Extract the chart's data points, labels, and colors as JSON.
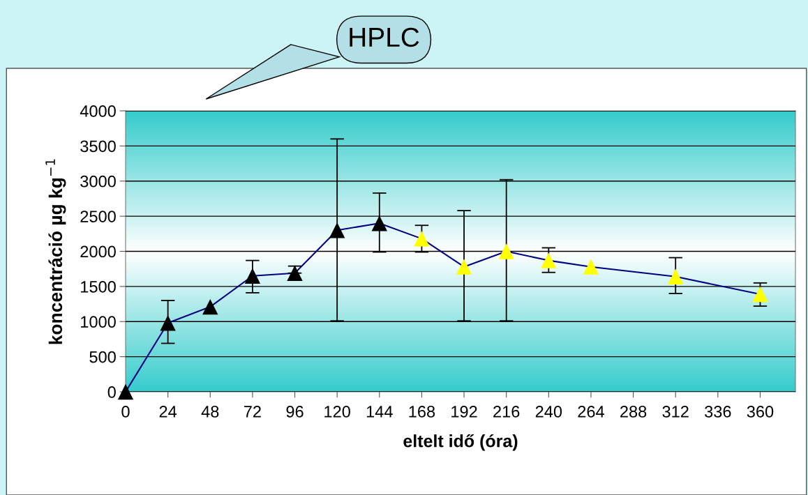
{
  "chart_data": {
    "type": "line",
    "xlabel": "eltelt idő (óra)",
    "ylabel": "koncentráció µg kg$^{−1}$",
    "annotations": [
      "HPLC"
    ],
    "x": [
      0,
      24,
      48,
      72,
      96,
      120,
      144,
      168,
      192,
      216,
      240,
      264,
      312,
      360
    ],
    "series": [
      {
        "color": "#000080",
        "colors": [
          "#000000",
          "#000000",
          "#000000",
          "#000000",
          "#000000",
          "#000000",
          "#000000",
          "#ffff00",
          "#ffff00",
          "#ffff00",
          "#ffff00",
          "#ffff00",
          "#ffff00",
          "#ffff00"
        ],
        "values": [
          0,
          980,
          1210,
          1650,
          1690,
          2300,
          2400,
          2180,
          1780,
          2000,
          1870,
          1780,
          1640,
          1390
        ],
        "errors": [
          null,
          [
            690,
            1300
          ],
          null,
          [
            1410,
            1870
          ],
          [
            1690,
            1790
          ],
          [
            1010,
            3600
          ],
          [
            1990,
            2830
          ],
          [
            1990,
            2370
          ],
          [
            1010,
            2580
          ],
          [
            1010,
            3020
          ],
          [
            1700,
            2050
          ],
          null,
          [
            1400,
            1910
          ],
          [
            1220,
            1550
          ]
        ]
      }
    ],
    "xlim": [
      0,
      380
    ],
    "xticks": [
      0,
      24,
      48,
      72,
      96,
      120,
      144,
      168,
      192,
      216,
      240,
      264,
      288,
      312,
      336,
      360
    ],
    "ylim": [
      0,
      4000
    ],
    "yticks": [
      0,
      500,
      1000,
      1500,
      2000,
      2500,
      3000,
      3500,
      4000
    ],
    "grid": "y",
    "marker": "triangle",
    "line_style": "solid",
    "legend": false
  }
}
